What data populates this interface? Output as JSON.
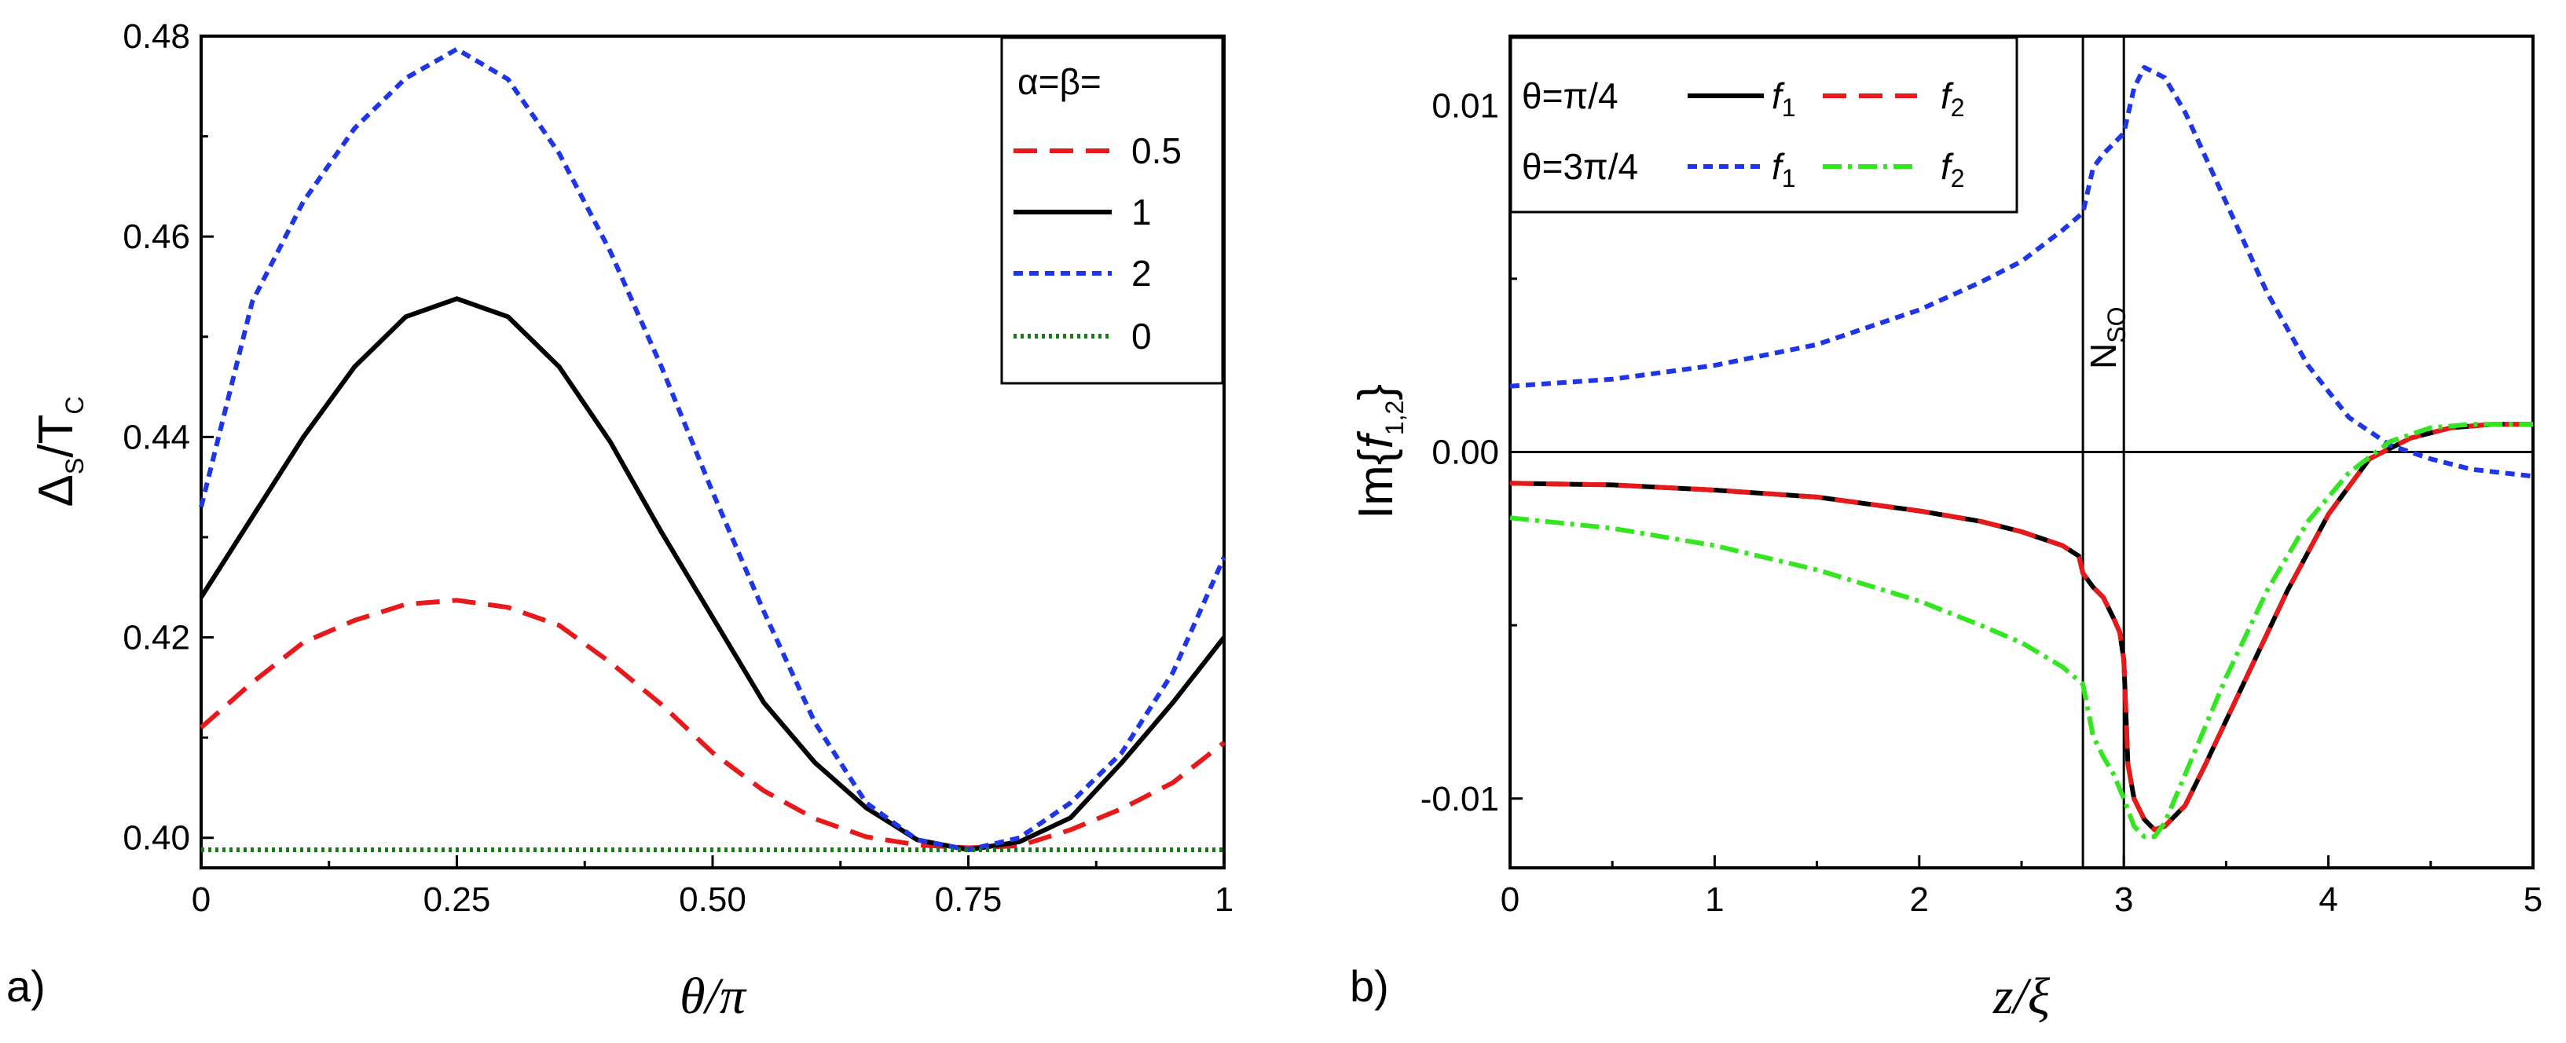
{
  "chart_data": [
    {
      "type": "line",
      "panel_label": "a)",
      "xlabel": "θ/π",
      "ylabel": {
        "main": "Δ",
        "sub1": "S",
        "mid": "/T",
        "sub2": "C"
      },
      "xlim": [
        0,
        1
      ],
      "ylim": [
        0.397,
        0.48
      ],
      "xticks": [
        0,
        0.25,
        0.5,
        0.75,
        1
      ],
      "xtick_labels": [
        "0",
        "0.25",
        "0.50",
        "0.75",
        "1"
      ],
      "yticks": [
        0.4,
        0.42,
        0.44,
        0.46,
        0.48
      ],
      "ytick_labels": [
        "0.40",
        "0.42",
        "0.44",
        "0.46",
        "0.48"
      ],
      "legend_title": "α=β=",
      "x": [
        0,
        0.05,
        0.1,
        0.15,
        0.2,
        0.25,
        0.3,
        0.35,
        0.4,
        0.45,
        0.5,
        0.55,
        0.6,
        0.65,
        0.7,
        0.75,
        0.8,
        0.85,
        0.9,
        0.95,
        1.0
      ],
      "series": [
        {
          "name": "0.5",
          "color": "#e8191b",
          "dash": "dashed",
          "values": [
            0.411,
            0.4155,
            0.4195,
            0.4217,
            0.4233,
            0.4237,
            0.423,
            0.4212,
            0.4175,
            0.4133,
            0.4085,
            0.4047,
            0.4019,
            0.4001,
            0.3993,
            0.399,
            0.3992,
            0.4008,
            0.4029,
            0.4055,
            0.4095
          ]
        },
        {
          "name": "1",
          "color": "#000000",
          "dash": "solid",
          "values": [
            0.424,
            0.432,
            0.44,
            0.447,
            0.452,
            0.4538,
            0.452,
            0.447,
            0.4395,
            0.4305,
            0.422,
            0.4135,
            0.4075,
            0.403,
            0.3998,
            0.3988,
            0.3996,
            0.402,
            0.4075,
            0.4135,
            0.42
          ]
        },
        {
          "name": "2",
          "color": "#1f36e8",
          "dash": "shortdash",
          "values": [
            0.433,
            0.4535,
            0.4635,
            0.4708,
            0.4758,
            0.4787,
            0.4757,
            0.4683,
            0.4585,
            0.447,
            0.4345,
            0.4226,
            0.4115,
            0.4035,
            0.3998,
            0.3988,
            0.4,
            0.4035,
            0.4085,
            0.4165,
            0.428
          ]
        },
        {
          "name": "0",
          "color": "#1a7a1a",
          "dash": "dotted",
          "values": [
            0.3988,
            0.3988,
            0.3988,
            0.3988,
            0.3988,
            0.3988,
            0.3988,
            0.3988,
            0.3988,
            0.3988,
            0.3988,
            0.3988,
            0.3988,
            0.3988,
            0.3988,
            0.3988,
            0.3988,
            0.3988,
            0.3988,
            0.3988,
            0.3988
          ]
        }
      ]
    },
    {
      "type": "line",
      "panel_label": "b)",
      "xlabel": "z/ξ",
      "ylabel": {
        "pre": "Im{",
        "f": "f",
        "sub": "1,2",
        "post": "}"
      },
      "xlim": [
        0,
        5
      ],
      "ylim": [
        -0.012,
        0.012
      ],
      "xticks": [
        0,
        1,
        2,
        3,
        4,
        5
      ],
      "xtick_labels": [
        "0",
        "1",
        "2",
        "3",
        "4",
        "5"
      ],
      "yticks": [
        -0.01,
        0.0,
        0.01
      ],
      "ytick_labels": [
        "-0.01",
        "0.00",
        "0.01"
      ],
      "vlines": [
        2.8,
        3.0
      ],
      "region_label": {
        "main": "N",
        "sub": "SO"
      },
      "legend_rows": [
        {
          "theta": "θ=π/4",
          "f1": "f",
          "f1_sub": "1",
          "f2": "f",
          "f2_sub": "2"
        },
        {
          "theta": "θ=3π/4",
          "f1": "f",
          "f1_sub": "1",
          "f2": "f",
          "f2_sub": "2"
        }
      ],
      "series": [
        {
          "name": "θ=π/4 f1",
          "color": "#000000",
          "dash": "solid",
          "x": [
            0,
            0.5,
            1,
            1.5,
            2,
            2.3,
            2.5,
            2.7,
            2.78,
            2.8,
            2.85,
            2.9,
            2.95,
            2.98,
            3.0,
            3.02,
            3.05,
            3.1,
            3.15,
            3.2,
            3.3,
            3.4,
            3.6,
            3.8,
            4.0,
            4.2,
            4.4,
            4.6,
            4.8,
            5.0
          ],
          "values": [
            -0.0009,
            -0.00095,
            -0.0011,
            -0.0013,
            -0.0017,
            -0.002,
            -0.0023,
            -0.0027,
            -0.003,
            -0.0035,
            -0.0039,
            -0.0042,
            -0.0048,
            -0.0052,
            -0.006,
            -0.009,
            -0.01,
            -0.0106,
            -0.0109,
            -0.0108,
            -0.0102,
            -0.009,
            -0.0065,
            -0.004,
            -0.0018,
            -0.0002,
            0.0004,
            0.0007,
            0.0008,
            0.0008
          ]
        },
        {
          "name": "θ=π/4 f2",
          "color": "#e8191b",
          "dash": "dashed",
          "x": [
            0,
            0.5,
            1,
            1.5,
            2,
            2.3,
            2.5,
            2.7,
            2.78,
            2.8,
            2.85,
            2.9,
            2.95,
            2.98,
            3.0,
            3.02,
            3.05,
            3.1,
            3.15,
            3.2,
            3.3,
            3.4,
            3.6,
            3.8,
            4.0,
            4.2,
            4.4,
            4.6,
            4.8,
            5.0
          ],
          "values": [
            -0.0009,
            -0.00095,
            -0.0011,
            -0.0013,
            -0.0017,
            -0.002,
            -0.0023,
            -0.0027,
            -0.003,
            -0.0035,
            -0.0039,
            -0.0042,
            -0.0048,
            -0.0052,
            -0.006,
            -0.009,
            -0.01,
            -0.0106,
            -0.0109,
            -0.0108,
            -0.0102,
            -0.009,
            -0.0065,
            -0.004,
            -0.0018,
            -0.0002,
            0.0004,
            0.0007,
            0.0008,
            0.0008
          ]
        },
        {
          "name": "θ=3π/4 f1",
          "color": "#1f36e8",
          "dash": "shortdash",
          "x": [
            0,
            0.5,
            1,
            1.5,
            2,
            2.3,
            2.5,
            2.7,
            2.8,
            2.85,
            2.9,
            2.95,
            3.0,
            3.05,
            3.1,
            3.2,
            3.3,
            3.5,
            3.7,
            3.9,
            4.1,
            4.3,
            4.5,
            4.7,
            5.0
          ],
          "values": [
            0.0019,
            0.0021,
            0.0025,
            0.0031,
            0.0041,
            0.0049,
            0.0055,
            0.0064,
            0.0069,
            0.0082,
            0.0086,
            0.0089,
            0.0092,
            0.0105,
            0.0111,
            0.0108,
            0.0098,
            0.0072,
            0.0046,
            0.0025,
            0.001,
            0.0002,
            -0.0002,
            -0.0005,
            -0.0007
          ]
        },
        {
          "name": "θ=3π/4 f2",
          "color": "#33e61f",
          "dash": "dashdot",
          "x": [
            0,
            0.5,
            1,
            1.5,
            2,
            2.3,
            2.5,
            2.7,
            2.8,
            2.85,
            2.9,
            2.95,
            3.0,
            3.05,
            3.1,
            3.15,
            3.2,
            3.3,
            3.5,
            3.7,
            3.9,
            4.1,
            4.3,
            4.5,
            4.7,
            5.0
          ],
          "values": [
            -0.0019,
            -0.0022,
            -0.0027,
            -0.0034,
            -0.0043,
            -0.005,
            -0.0055,
            -0.0062,
            -0.0067,
            -0.0082,
            -0.0088,
            -0.0093,
            -0.01,
            -0.0108,
            -0.0111,
            -0.0111,
            -0.0107,
            -0.0093,
            -0.0065,
            -0.004,
            -0.002,
            -0.0006,
            0.0003,
            0.0007,
            0.0008,
            0.0008
          ]
        }
      ]
    }
  ]
}
